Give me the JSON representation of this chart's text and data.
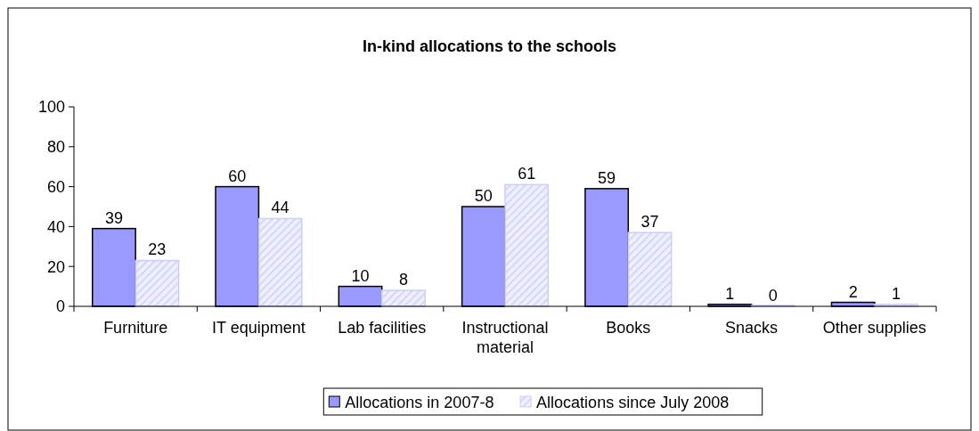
{
  "chart_data": {
    "type": "bar",
    "title": "In-kind allocations to the schools",
    "categories": [
      "Furniture",
      "IT equipment",
      "Lab facilities",
      "Instructional material",
      "Books",
      "Snacks",
      "Other supplies"
    ],
    "series": [
      {
        "name": "Allocations in 2007-8",
        "color": "#9999ff",
        "values": [
          39,
          60,
          10,
          50,
          59,
          1,
          2
        ]
      },
      {
        "name": "Allocations since July 2008",
        "color": "#ccccff",
        "values": [
          23,
          44,
          8,
          61,
          37,
          0,
          1
        ]
      }
    ],
    "ylim": [
      0,
      100
    ],
    "yticks": [
      0,
      20,
      40,
      60,
      80,
      100
    ],
    "grid": false,
    "legend": "bottom",
    "data_labels": true
  }
}
